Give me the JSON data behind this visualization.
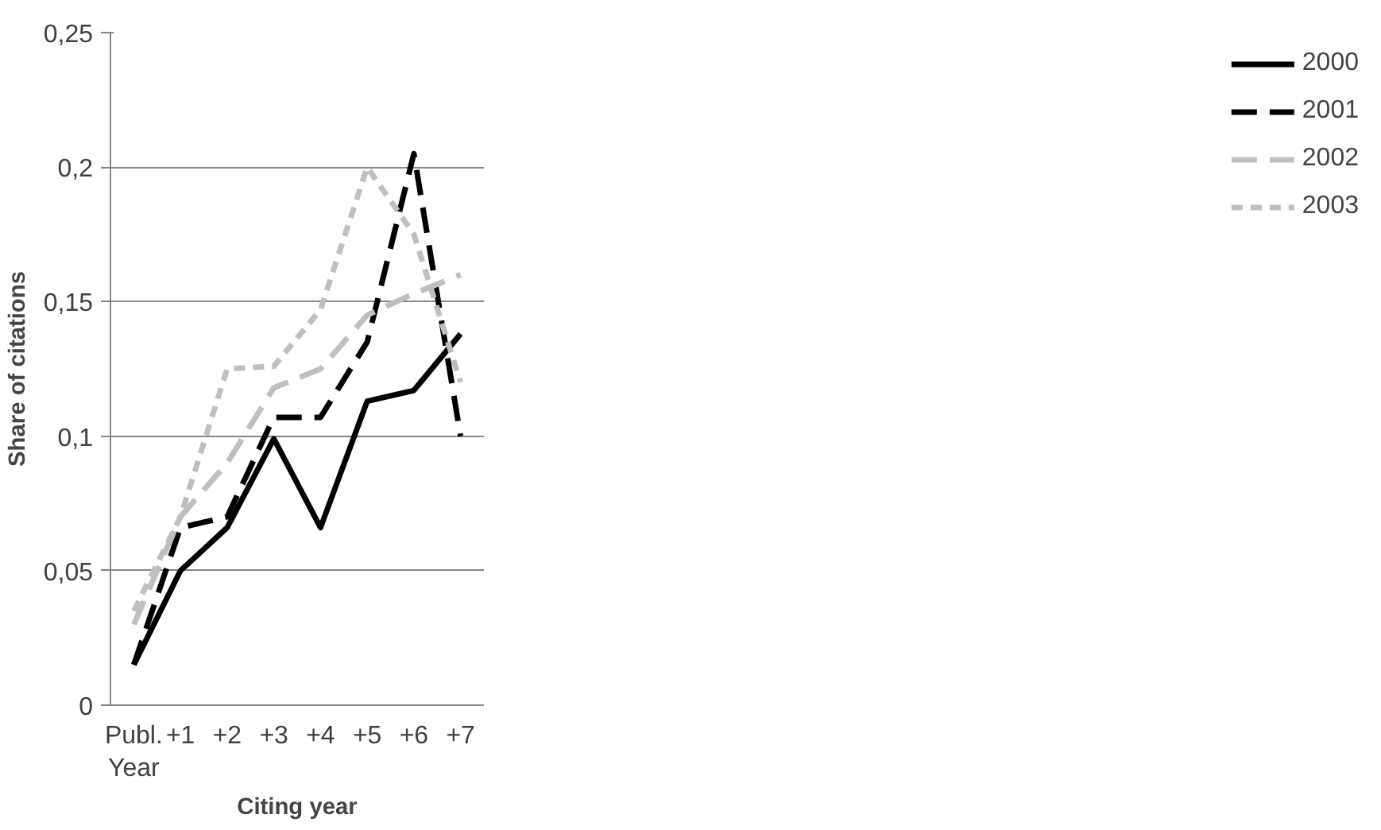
{
  "chart_data": {
    "type": "line",
    "xlabel": "Citing year",
    "ylabel": "Share of citations",
    "categories": [
      "Publ.\nYear",
      "+1",
      "+2",
      "+3",
      "+4",
      "+5",
      "+6",
      "+7"
    ],
    "series": [
      {
        "name": "2000",
        "color": "#000000",
        "line_style": "solid",
        "values": [
          0.015,
          0.05,
          0.066,
          0.099,
          0.066,
          0.113,
          0.117,
          0.138
        ]
      },
      {
        "name": "2001",
        "color": "#000000",
        "line_style": "dashed",
        "values": [
          0.015,
          0.066,
          0.07,
          0.107,
          0.107,
          0.135,
          0.205,
          0.1
        ]
      },
      {
        "name": "2002",
        "color": "#bfbfbf",
        "line_style": "dashed",
        "values": [
          0.03,
          0.07,
          0.09,
          0.118,
          0.125,
          0.145,
          0.153,
          0.16
        ]
      },
      {
        "name": "2003",
        "color": "#bfbfbf",
        "line_style": "dotted",
        "values": [
          0.035,
          0.07,
          0.125,
          0.126,
          0.147,
          0.2,
          0.175,
          0.12
        ]
      }
    ],
    "ylim": [
      0,
      0.25
    ],
    "yticks": [
      {
        "value": 0,
        "label": "0"
      },
      {
        "value": 0.05,
        "label": "0,05"
      },
      {
        "value": 0.1,
        "label": "0,1"
      },
      {
        "value": 0.15,
        "label": "0,15"
      },
      {
        "value": 0.2,
        "label": "0,2"
      },
      {
        "value": 0.25,
        "label": "0,25"
      }
    ],
    "grid": "y",
    "legend": "right"
  }
}
